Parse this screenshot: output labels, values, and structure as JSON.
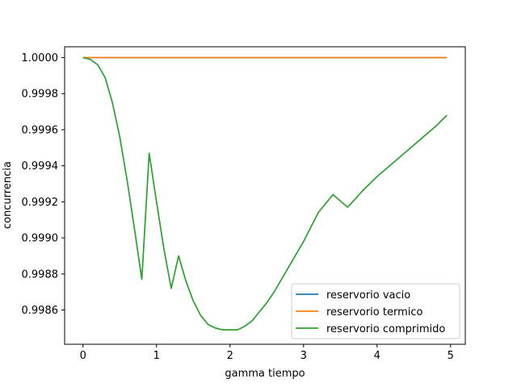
{
  "chart_data": {
    "type": "line",
    "title": "",
    "xlabel": "gamma tiempo",
    "ylabel": "concurrencia",
    "xlim": [
      -0.25,
      5.2
    ],
    "ylim": [
      0.99841,
      1.00006
    ],
    "xticks": [
      0,
      1,
      2,
      3,
      4,
      5
    ],
    "xtick_labels": [
      "0",
      "1",
      "2",
      "3",
      "4",
      "5"
    ],
    "yticks": [
      0.9986,
      0.9988,
      0.999,
      0.9992,
      0.9994,
      0.9996,
      0.9998,
      1.0
    ],
    "ytick_labels": [
      "0.9986",
      "0.9988",
      "0.9990",
      "0.9992",
      "0.9994",
      "0.9996",
      "0.9998",
      "1.0000"
    ],
    "grid": false,
    "legend_position": "lower-right",
    "series": [
      {
        "name": "reservorio vacio",
        "color": "#1f77b4",
        "x": [
          0,
          0.5,
          1,
          1.5,
          2,
          2.5,
          3,
          3.5,
          4,
          4.5,
          4.95
        ],
        "y": [
          1.0,
          1.0,
          1.0,
          1.0,
          1.0,
          1.0,
          1.0,
          1.0,
          1.0,
          1.0,
          1.0
        ]
      },
      {
        "name": "reservorio termico",
        "color": "#ff7f0e",
        "x": [
          0,
          0.5,
          1,
          1.5,
          2,
          2.5,
          3,
          3.5,
          4,
          4.5,
          4.95
        ],
        "y": [
          1.0,
          1.0,
          1.0,
          1.0,
          1.0,
          1.0,
          1.0,
          1.0,
          1.0,
          1.0,
          1.0
        ]
      },
      {
        "name": "reservorio comprimido",
        "color": "#2ca02c",
        "x": [
          0,
          0.1,
          0.2,
          0.3,
          0.4,
          0.5,
          0.6,
          0.7,
          0.8,
          0.9,
          1.0,
          1.1,
          1.2,
          1.3,
          1.4,
          1.5,
          1.6,
          1.7,
          1.8,
          1.9,
          2.0,
          2.1,
          2.2,
          2.3,
          2.4,
          2.5,
          2.6,
          2.7,
          2.8,
          2.9,
          3.0,
          3.2,
          3.4,
          3.6,
          3.8,
          4.0,
          4.2,
          4.4,
          4.6,
          4.8,
          4.95
        ],
        "y": [
          1.0,
          0.99999,
          0.99996,
          0.99989,
          0.99975,
          0.99956,
          0.99932,
          0.99905,
          0.99877,
          0.99947,
          0.9992,
          0.99894,
          0.99872,
          0.9989,
          0.99876,
          0.99865,
          0.99857,
          0.99852,
          0.9985,
          0.99849,
          0.99849,
          0.99849,
          0.99851,
          0.99854,
          0.99859,
          0.99864,
          0.9987,
          0.99877,
          0.99884,
          0.99891,
          0.99898,
          0.99914,
          0.99924,
          0.99917,
          0.99926,
          0.99934,
          0.99941,
          0.99948,
          0.99955,
          0.99962,
          0.99968
        ]
      }
    ]
  }
}
